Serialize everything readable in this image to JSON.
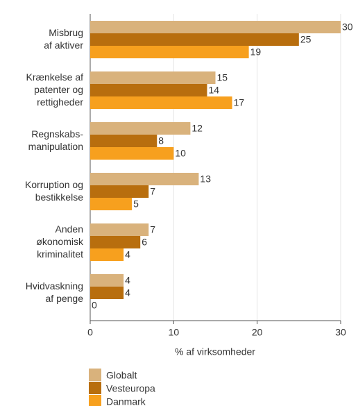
{
  "chart_data": {
    "type": "bar",
    "orientation": "horizontal",
    "categories": [
      "Misbrug\naf aktiver",
      "Krænkelse af\npatenter og\nrettigheder",
      "Regnskabs-\nmanipulation",
      "Korruption og\nbestikkelse",
      "Anden\nøkonomisk\nkriminalitet",
      "Hvidvaskning\naf penge"
    ],
    "series": [
      {
        "name": "Globalt",
        "color": "#d9b27c",
        "values": [
          30,
          15,
          12,
          13,
          7,
          4
        ]
      },
      {
        "name": "Vesteuropa",
        "color": "#b86e0e",
        "values": [
          25,
          14,
          8,
          7,
          6,
          4
        ]
      },
      {
        "name": "Danmark",
        "color": "#f7a01e",
        "values": [
          19,
          17,
          10,
          5,
          4,
          0
        ]
      }
    ],
    "xlabel": "% af virksomheder",
    "xlim": [
      0,
      30
    ],
    "xticks": [
      0,
      10,
      20,
      30
    ],
    "grid": true
  }
}
